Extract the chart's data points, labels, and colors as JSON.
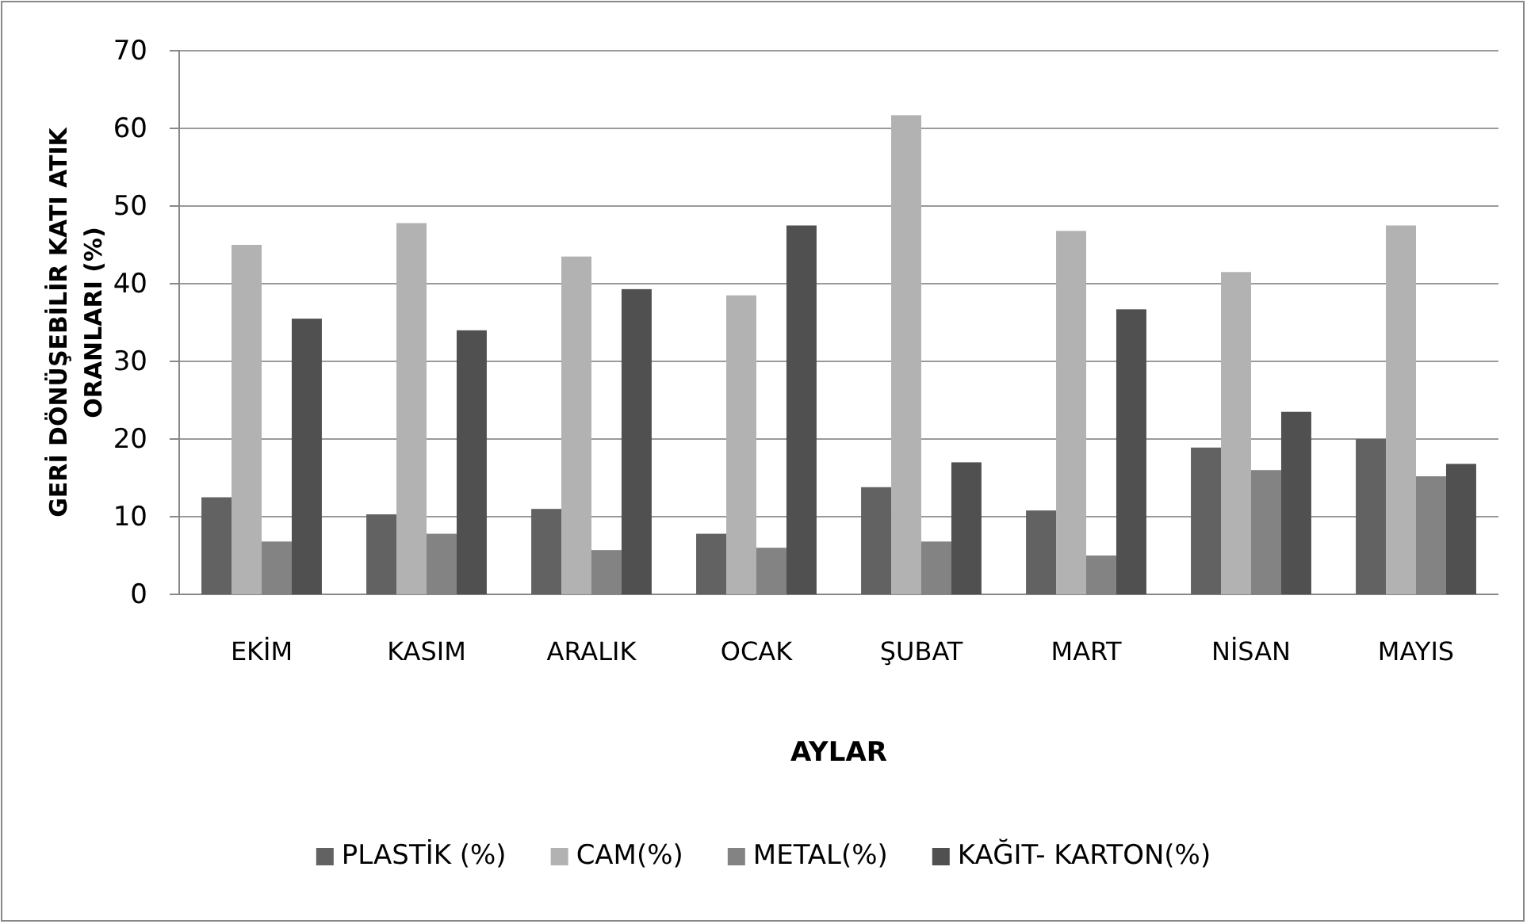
{
  "chart_data": {
    "type": "bar",
    "xlabel": "AYLAR",
    "ylabel": "GERİ DÖNÜŞEBİLİR KATI ATIK ORANLARI  (%)",
    "categories": [
      "EKİM",
      "KASIM",
      "ARALIK",
      "OCAK",
      "ŞUBAT",
      "MART",
      "NİSAN",
      "MAYIS"
    ],
    "series": [
      {
        "name": "PLASTİK (%)",
        "color": "#626262",
        "values": [
          12.5,
          10.3,
          11,
          7.8,
          13.8,
          10.8,
          18.9,
          20
        ]
      },
      {
        "name": "CAM(%)",
        "color": "#b2b2b2",
        "values": [
          45,
          47.8,
          43.5,
          38.5,
          61.7,
          46.8,
          41.5,
          47.5
        ]
      },
      {
        "name": "METAL(%)",
        "color": "#838383",
        "values": [
          6.8,
          7.8,
          5.7,
          6,
          6.8,
          5,
          16,
          15.2
        ]
      },
      {
        "name": "KAĞIT- KARTON(%)",
        "color": "#505050",
        "values": [
          35.5,
          34,
          39.3,
          47.5,
          17,
          36.7,
          23.5,
          16.8
        ]
      }
    ],
    "ylim": [
      0,
      70
    ],
    "yticks": [
      0,
      10,
      20,
      30,
      40,
      50,
      60,
      70
    ],
    "grid": "y",
    "legend": "bottom"
  }
}
